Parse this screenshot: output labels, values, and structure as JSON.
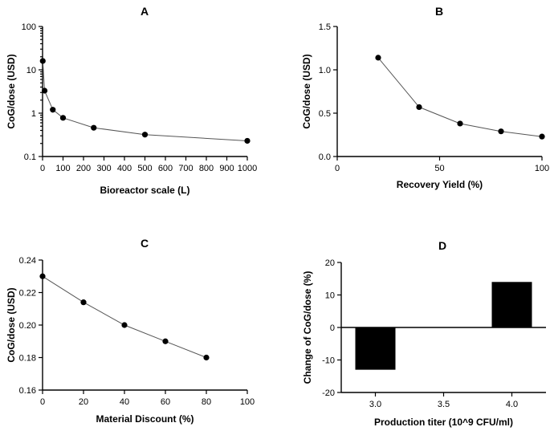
{
  "chart_data": [
    {
      "id": "A",
      "type": "line",
      "panel_label": "A",
      "xlabel": "Bioreactor scale (L)",
      "ylabel": "CoG/dose (USD)",
      "xlim": [
        0,
        1000
      ],
      "ylim": [
        0.1,
        100
      ],
      "yscale": "log",
      "xticks": [
        0,
        100,
        200,
        300,
        400,
        500,
        600,
        700,
        800,
        900,
        1000
      ],
      "yticks": [
        0.1,
        1,
        10,
        100
      ],
      "ytick_labels": [
        "0.1",
        "1",
        "10",
        "100"
      ],
      "x": [
        1,
        10,
        50,
        100,
        250,
        500,
        1000
      ],
      "y": [
        16,
        3.3,
        1.2,
        0.78,
        0.46,
        0.32,
        0.23
      ]
    },
    {
      "id": "B",
      "type": "line",
      "panel_label": "B",
      "xlabel": "Recovery Yield (%)",
      "ylabel": "CoG/dose (USD)",
      "xlim": [
        0,
        100
      ],
      "ylim": [
        0,
        1.5
      ],
      "yscale": "linear",
      "xticks": [
        0,
        50,
        100
      ],
      "yticks": [
        0,
        0.5,
        1.0,
        1.5
      ],
      "ytick_labels": [
        "0.0",
        "0.5",
        "1.0",
        "1.5"
      ],
      "x": [
        20,
        40,
        60,
        80,
        100
      ],
      "y": [
        1.14,
        0.57,
        0.38,
        0.29,
        0.23
      ]
    },
    {
      "id": "C",
      "type": "line",
      "panel_label": "C",
      "xlabel": "Material Discount (%)",
      "ylabel": "CoG/dose (USD)",
      "xlim": [
        0,
        100
      ],
      "ylim": [
        0.16,
        0.24
      ],
      "yscale": "linear",
      "xticks": [
        0,
        20,
        40,
        60,
        80,
        100
      ],
      "yticks": [
        0.16,
        0.18,
        0.2,
        0.22,
        0.24
      ],
      "ytick_labels": [
        "0.16",
        "0.18",
        "0.20",
        "0.22",
        "0.24"
      ],
      "x": [
        0,
        20,
        40,
        60,
        80
      ],
      "y": [
        0.23,
        0.214,
        0.2,
        0.19,
        0.18
      ]
    },
    {
      "id": "D",
      "type": "bar",
      "panel_label": "D",
      "xlabel": "Production titer (10^9 CFU/ml)",
      "ylabel": "Change of CoG/dose (%)",
      "xlim": [
        2.75,
        4.25
      ],
      "ylim": [
        -20,
        20
      ],
      "yscale": "linear",
      "xticks": [
        3.0,
        3.5,
        4.0
      ],
      "xtick_labels": [
        "3.0",
        "3.5",
        "4.0"
      ],
      "yticks": [
        -20,
        -10,
        0,
        10,
        20
      ],
      "ytick_labels": [
        "-20",
        "-10",
        "0",
        "10",
        "20"
      ],
      "x": [
        3.0,
        4.0
      ],
      "values": [
        -13,
        14
      ]
    }
  ]
}
